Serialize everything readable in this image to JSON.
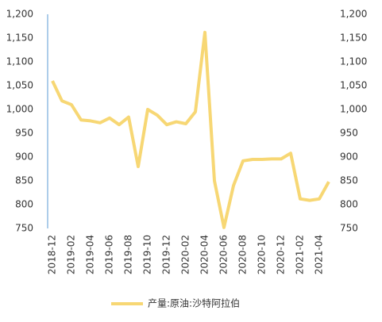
{
  "chart_data": {
    "type": "line",
    "categories": [
      "2018-12",
      null,
      "2019-02",
      null,
      "2019-04",
      null,
      "2019-06",
      null,
      "2019-08",
      null,
      "2019-10",
      null,
      "2019-12",
      null,
      "2020-02",
      null,
      "2020-04",
      null,
      "2020-06",
      null,
      "2020-08",
      null,
      "2020-10",
      null,
      "2020-12",
      null,
      "2021-02",
      null,
      "2021-04",
      null
    ],
    "series": [
      {
        "name": "产量:原油:沙特阿拉伯",
        "color": "#f7d774",
        "values": [
          1060,
          1018,
          1010,
          978,
          976,
          972,
          982,
          968,
          984,
          880,
          1000,
          988,
          968,
          974,
          970,
          995,
          1162,
          850,
          752,
          840,
          892,
          895,
          895,
          896,
          896,
          908,
          812,
          809,
          812,
          848
        ]
      }
    ],
    "ylim": [
      750,
      1200
    ],
    "yticks": [
      750,
      800,
      850,
      900,
      950,
      {
        "value": 1000,
        "label": "1,000"
      },
      {
        "value": 1050,
        "label": "1,050"
      },
      {
        "value": 1100,
        "label": "1,100"
      },
      {
        "value": 1150,
        "label": "1,150"
      },
      {
        "value": 1200,
        "label": "1,200"
      }
    ],
    "y2lim": [
      750,
      1200
    ],
    "y2ticks": [
      750,
      800,
      850,
      900,
      950,
      {
        "value": 1000,
        "label": "1,000"
      },
      {
        "value": 1050,
        "label": "1,050"
      },
      {
        "value": 1100,
        "label": "1,100"
      },
      {
        "value": 1150,
        "label": "1,150"
      },
      {
        "value": 1200,
        "label": "1,200"
      }
    ]
  }
}
